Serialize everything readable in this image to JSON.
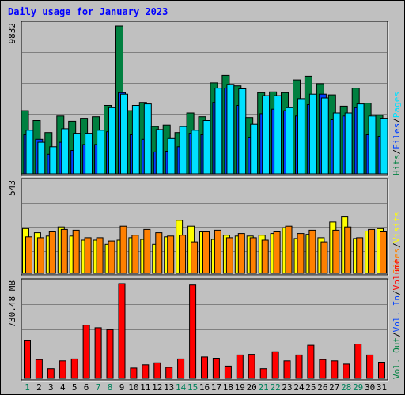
{
  "chart_data": {
    "type": "bar",
    "title": "Daily usage for January 2023",
    "days": [
      "1",
      "2",
      "3",
      "4",
      "5",
      "6",
      "7",
      "8",
      "9",
      "10",
      "11",
      "12",
      "13",
      "14",
      "15",
      "16",
      "17",
      "18",
      "19",
      "20",
      "21",
      "22",
      "23",
      "24",
      "25",
      "26",
      "27",
      "28",
      "29",
      "30",
      "31"
    ],
    "weekend_days": [
      "1",
      "7",
      "8",
      "14",
      "15",
      "21",
      "22",
      "28",
      "29"
    ],
    "panels": [
      {
        "id": "hits",
        "ymax_label": "9832",
        "ymax": 9832,
        "series": [
          {
            "name": "Hits",
            "color": "#008040",
            "values": [
              4200,
              3550,
              2750,
              3850,
              3500,
              3700,
              3800,
              4550,
              9832,
              4200,
              4750,
              3150,
              3250,
              2750,
              4050,
              3800,
              6050,
              6550,
              5850,
              3750,
              5400,
              5450,
              5400,
              6250,
              6500,
              6000,
              5250,
              4500,
              5700,
              4700,
              3900
            ]
          },
          {
            "name": "Files",
            "color": "#0040ff",
            "values": [
              2600,
              2300,
              1300,
              2100,
              1550,
              1950,
              1950,
              2800,
              5400,
              2600,
              2300,
              1450,
              1500,
              1800,
              2700,
              2600,
              4750,
              5700,
              4550,
              2400,
              4000,
              4300,
              4200,
              3850,
              4600,
              5300,
              3600,
              3850,
              4400,
              2600,
              2500
            ]
          },
          {
            "name": "Pages",
            "color": "#00e0ff",
            "values": [
              2900,
              2100,
              1800,
              3000,
              2700,
              2700,
              2900,
              4400,
              5300,
              4550,
              4650,
              2950,
              2350,
              3150,
              2900,
              3550,
              5700,
              5950,
              5650,
              3300,
              5200,
              5200,
              4400,
              5000,
              5300,
              5050,
              4050,
              4050,
              4650,
              3850,
              3700
            ]
          }
        ]
      },
      {
        "id": "sites",
        "ymax_label": "543",
        "ymax": 543,
        "series": [
          {
            "name": "Visits",
            "color": "#ffff00",
            "values": [
              270,
              245,
              225,
              280,
              225,
              200,
              200,
              175,
              200,
              215,
              205,
              175,
              220,
              320,
              285,
              250,
              205,
              230,
              225,
              225,
              230,
              240,
              275,
              210,
              235,
              215,
              310,
              340,
              210,
              255,
              270
            ]
          },
          {
            "name": "Sites",
            "color": "#ff8000",
            "values": [
              220,
              215,
              250,
              265,
              260,
              215,
              215,
              195,
              285,
              230,
              265,
              245,
              225,
              230,
              190,
              250,
              260,
              215,
              240,
              215,
              200,
              250,
              285,
              240,
              260,
              190,
              260,
              280,
              215,
              265,
              250
            ]
          }
        ]
      },
      {
        "id": "volume",
        "ymax_label": "730.48 MB",
        "ymax": 730.48,
        "series": [
          {
            "name": "Volume",
            "color": "#ff0000",
            "values": [
              290,
              145,
              75,
              135,
              150,
              410,
              390,
              375,
              730.48,
              80,
              105,
              120,
              85,
              150,
              720,
              165,
              155,
              95,
              180,
              185,
              75,
              205,
              135,
              180,
              255,
              145,
              135,
              110,
              265,
              180,
              125
            ]
          }
        ]
      }
    ],
    "right_labels": {
      "top": [
        {
          "text": "Hits",
          "color": "#008040"
        },
        {
          "text": "Files",
          "color": "#0040ff"
        },
        {
          "text": "Pages",
          "color": "#00e0ff"
        }
      ],
      "middle": [
        {
          "text": "Sites",
          "color": "#ff8000"
        },
        {
          "text": "Visits",
          "color": "#ffff00"
        }
      ],
      "bottom": [
        {
          "text": "Vol. Out",
          "color": "#008040"
        },
        {
          "text": "Vol. In",
          "color": "#0040ff"
        },
        {
          "text": "Volume",
          "color": "#ff0000"
        }
      ],
      "separator": "/"
    }
  }
}
